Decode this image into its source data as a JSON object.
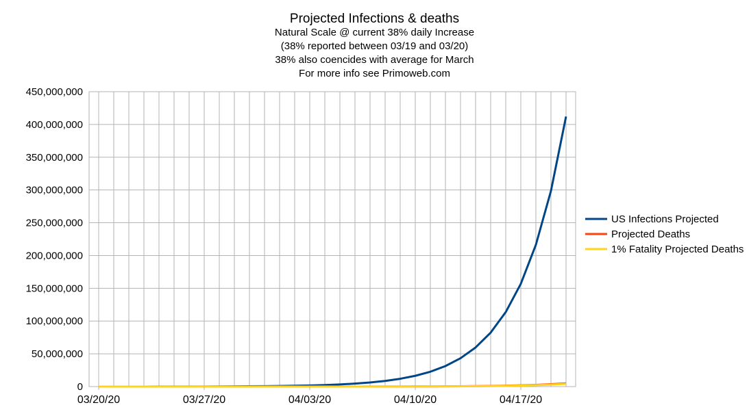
{
  "chart_data": {
    "type": "line",
    "title": "Projected Infections & deaths",
    "subtitle": [
      "Natural Scale @ current 38% daily Increase",
      "(38% reported between 03/19 and 03/20)",
      "38% also coencides with average for March",
      "For more info see Primoweb.com"
    ],
    "x": [
      "03/20/20",
      "03/21/20",
      "03/22/20",
      "03/23/20",
      "03/24/20",
      "03/25/20",
      "03/26/20",
      "03/27/20",
      "03/28/20",
      "03/29/20",
      "03/30/20",
      "03/31/20",
      "04/01/20",
      "04/02/20",
      "04/03/20",
      "04/04/20",
      "04/05/20",
      "04/06/20",
      "04/07/20",
      "04/08/20",
      "04/09/20",
      "04/10/20",
      "04/11/20",
      "04/12/20",
      "04/13/20",
      "04/14/20",
      "04/15/20",
      "04/16/20",
      "04/17/20",
      "04/18/20",
      "04/19/20",
      "04/20/20"
    ],
    "x_tick_labels": [
      "03/20/20",
      "03/27/20",
      "04/03/20",
      "04/10/20",
      "04/17/20"
    ],
    "y_tick_labels": [
      "0",
      "50,000,000",
      "100,000,000",
      "150,000,000",
      "200,000,000",
      "250,000,000",
      "300,000,000",
      "350,000,000",
      "400,000,000",
      "450,000,000"
    ],
    "ylim": [
      0,
      450000000
    ],
    "grid": true,
    "legend_position": "right",
    "series": [
      {
        "name": "US Infections Projected",
        "color": "#004586",
        "values": [
          19000,
          26220,
          36184,
          49933,
          68908,
          95093,
          131228,
          181095,
          249911,
          344877,
          475930,
          656783,
          906361,
          1250778,
          1726074,
          2381982,
          3287135,
          4536247,
          6260021,
          8638829,
          11921584,
          16451786,
          22703465,
          31330781,
          43236478,
          59666339,
          82339548,
          113628576,
          156807435,
          216394260,
          298624079,
          412101229
        ]
      },
      {
        "name": "Projected Deaths",
        "color": "#ff420e",
        "values": [
          230,
          317,
          438,
          604,
          834,
          1151,
          1588,
          2191,
          3024,
          4173,
          5759,
          7947,
          10967,
          15134,
          20885,
          28822,
          39774,
          54889,
          75746,
          104530,
          144251,
          199067,
          274712,
          378303,
          523161,
          721963,
          996322,
          1374906,
          1897371,
          2618372,
          3613354,
          4986428
        ]
      },
      {
        "name": "1% Fatality Projected Deaths",
        "color": "#ffd320",
        "values": [
          190,
          262,
          362,
          499,
          689,
          951,
          1312,
          1811,
          2499,
          3449,
          4759,
          6568,
          9064,
          12508,
          17261,
          23820,
          32871,
          45362,
          62600,
          86388,
          119216,
          164518,
          227035,
          313308,
          432365,
          596663,
          823395,
          1136286,
          1568074,
          2163943,
          2986241,
          4121012
        ]
      }
    ]
  }
}
